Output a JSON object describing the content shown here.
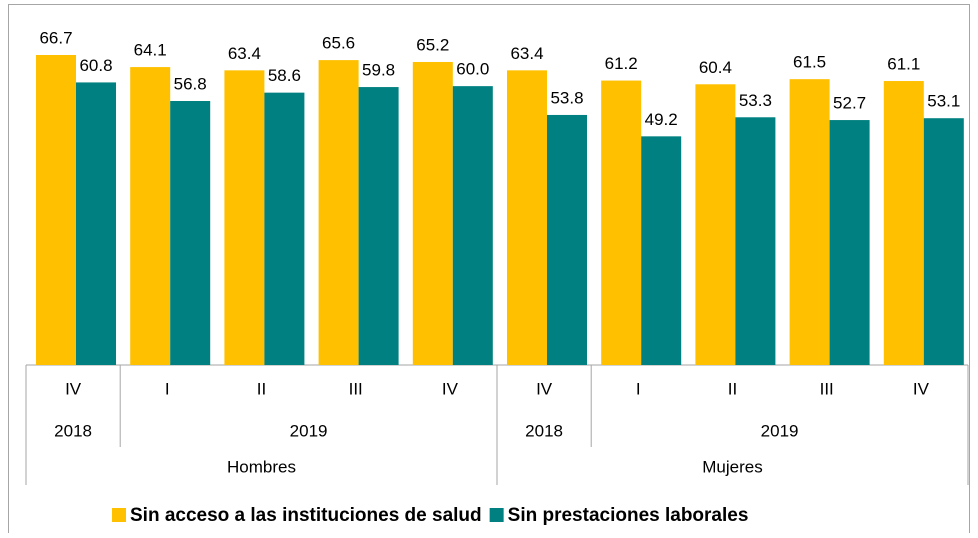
{
  "chart_data": {
    "type": "bar",
    "category_groups": [
      {
        "name": "Hombres",
        "years": [
          {
            "name": "2018",
            "categories": [
              "IV"
            ]
          },
          {
            "name": "2019",
            "categories": [
              "I",
              "II",
              "III",
              "IV"
            ]
          }
        ]
      },
      {
        "name": "Mujeres",
        "years": [
          {
            "name": "2018",
            "categories": [
              "IV"
            ]
          },
          {
            "name": "2019",
            "categories": [
              "I",
              "II",
              "III",
              "IV"
            ]
          }
        ]
      }
    ],
    "series": [
      {
        "name": "Sin acceso a las instituciones de salud",
        "color": "#ffc000",
        "values": [
          66.7,
          64.1,
          63.4,
          65.6,
          65.2,
          63.4,
          61.2,
          60.4,
          61.5,
          61.1
        ],
        "value_labels": [
          "66.7",
          "64.1",
          "63.4",
          "65.6",
          "65.2",
          "63.4",
          "61.2",
          "60.4",
          "61.5",
          "61.1"
        ]
      },
      {
        "name": "Sin prestaciones laborales",
        "color": "#008080",
        "values": [
          60.8,
          56.8,
          58.6,
          59.8,
          60.0,
          53.8,
          49.2,
          53.3,
          52.7,
          53.1
        ],
        "value_labels": [
          "60.8",
          "56.8",
          "58.6",
          "59.8",
          "60.0",
          "53.8",
          "49.2",
          "53.3",
          "52.7",
          "53.1"
        ]
      }
    ],
    "legend": "bottom"
  }
}
